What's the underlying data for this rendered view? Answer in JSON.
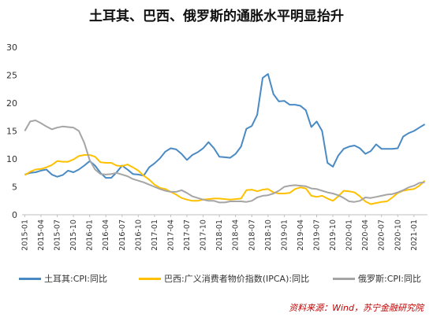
{
  "title": "土耳其、巴西、俄罗斯的通胀水平明显抬升",
  "source": "资料来源：Wind，苏宁金融研究院",
  "chart_data": {
    "type": "line",
    "title": "土耳其、巴西、俄罗斯的通胀水平明显抬升",
    "ylim": [
      0,
      30
    ],
    "yticks": [
      0,
      5,
      10,
      15,
      20,
      25,
      30
    ],
    "grid": false,
    "legend_position": "bottom",
    "x": [
      "2015-01",
      "2015-02",
      "2015-03",
      "2015-04",
      "2015-05",
      "2015-06",
      "2015-07",
      "2015-08",
      "2015-09",
      "2015-10",
      "2015-11",
      "2015-12",
      "2016-01",
      "2016-02",
      "2016-03",
      "2016-04",
      "2016-05",
      "2016-06",
      "2016-07",
      "2016-08",
      "2016-09",
      "2016-10",
      "2016-11",
      "2016-12",
      "2017-01",
      "2017-02",
      "2017-03",
      "2017-04",
      "2017-05",
      "2017-06",
      "2017-07",
      "2017-08",
      "2017-09",
      "2017-10",
      "2017-11",
      "2017-12",
      "2018-01",
      "2018-02",
      "2018-03",
      "2018-04",
      "2018-05",
      "2018-06",
      "2018-07",
      "2018-08",
      "2018-09",
      "2018-10",
      "2018-11",
      "2018-12",
      "2019-01",
      "2019-02",
      "2019-03",
      "2019-04",
      "2019-05",
      "2019-06",
      "2019-07",
      "2019-08",
      "2019-09",
      "2019-10",
      "2019-11",
      "2019-12",
      "2020-01",
      "2020-02",
      "2020-03",
      "2020-04",
      "2020-05",
      "2020-06",
      "2020-07",
      "2020-08",
      "2020-09",
      "2020-10",
      "2020-11",
      "2020-12",
      "2021-01",
      "2021-02",
      "2021-03"
    ],
    "xtick_labels": [
      "2015-01",
      "2015-04",
      "2015-07",
      "2015-10",
      "2016-01",
      "2016-04",
      "2016-07",
      "2016-10",
      "2017-01",
      "2017-04",
      "2017-07",
      "2017-10",
      "2018-01",
      "2018-04",
      "2018-07",
      "2018-10",
      "2019-01",
      "2019-04",
      "2019-07",
      "2019-10",
      "2020-01",
      "2020-04",
      "2020-07",
      "2020-10",
      "2021-01"
    ],
    "series": [
      {
        "name": "土耳其:CPI:同比",
        "color": "#4a8ac4",
        "values": [
          7.2,
          7.5,
          7.6,
          7.9,
          8.1,
          7.2,
          6.8,
          7.1,
          7.9,
          7.6,
          8.1,
          8.8,
          9.6,
          8.8,
          7.5,
          6.6,
          6.6,
          7.6,
          8.8,
          8.1,
          7.3,
          7.2,
          7.0,
          8.5,
          9.2,
          10.1,
          11.3,
          11.9,
          11.7,
          10.9,
          9.8,
          10.7,
          11.2,
          11.9,
          13.0,
          11.9,
          10.4,
          10.3,
          10.2,
          10.9,
          12.2,
          15.4,
          15.9,
          17.9,
          24.5,
          25.2,
          21.6,
          20.3,
          20.4,
          19.7,
          19.7,
          19.5,
          18.7,
          15.7,
          16.7,
          15.0,
          9.3,
          8.6,
          10.6,
          11.8,
          12.2,
          12.4,
          11.9,
          10.9,
          11.4,
          12.6,
          11.8,
          11.8,
          11.8,
          11.9,
          14.0,
          14.6,
          15.0,
          15.6,
          16.2
        ]
      },
      {
        "name": "巴西:广义消费者物价指数(IPCA):同比",
        "color": "#ffc000",
        "values": [
          7.1,
          7.7,
          8.1,
          8.2,
          8.5,
          8.9,
          9.6,
          9.5,
          9.5,
          9.9,
          10.5,
          10.7,
          10.7,
          10.4,
          9.4,
          9.3,
          9.3,
          8.8,
          8.7,
          9.0,
          8.5,
          7.9,
          7.0,
          6.3,
          5.4,
          4.8,
          4.6,
          4.1,
          3.6,
          3.0,
          2.7,
          2.5,
          2.5,
          2.7,
          2.8,
          2.9,
          2.9,
          2.8,
          2.7,
          2.8,
          2.9,
          4.4,
          4.5,
          4.2,
          4.5,
          4.6,
          4.0,
          3.8,
          3.8,
          3.9,
          4.6,
          4.9,
          4.7,
          3.4,
          3.2,
          3.4,
          2.9,
          2.5,
          3.3,
          4.3,
          4.2,
          4.0,
          3.3,
          2.4,
          1.9,
          2.1,
          2.3,
          2.4,
          3.1,
          3.9,
          4.3,
          4.5,
          4.6,
          5.2,
          6.1
        ]
      },
      {
        "name": "俄罗斯:CPI:同比",
        "color": "#a5a5a5",
        "values": [
          15.0,
          16.7,
          16.9,
          16.4,
          15.8,
          15.3,
          15.6,
          15.8,
          15.7,
          15.6,
          15.0,
          12.9,
          9.8,
          8.1,
          7.3,
          7.2,
          7.3,
          7.5,
          7.2,
          6.9,
          6.4,
          6.1,
          5.8,
          5.4,
          5.0,
          4.6,
          4.3,
          4.1,
          4.1,
          4.4,
          3.9,
          3.3,
          3.0,
          2.7,
          2.5,
          2.5,
          2.2,
          2.2,
          2.4,
          2.4,
          2.4,
          2.3,
          2.5,
          3.1,
          3.4,
          3.5,
          3.8,
          4.3,
          5.0,
          5.2,
          5.3,
          5.2,
          5.1,
          4.7,
          4.6,
          4.3,
          4.0,
          3.8,
          3.5,
          3.0,
          2.4,
          2.3,
          2.5,
          3.1,
          3.0,
          3.2,
          3.4,
          3.6,
          3.7,
          4.0,
          4.4,
          4.9,
          5.2,
          5.7,
          5.8
        ]
      }
    ]
  }
}
